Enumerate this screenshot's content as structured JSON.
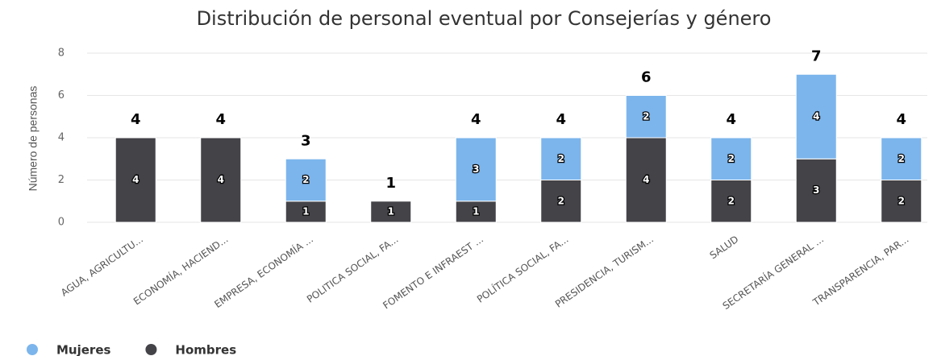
{
  "chart_data": {
    "type": "stacked_bar",
    "title": "Distribución de personal eventual por Consejerías y género",
    "y_label": "Número de personas",
    "categories": [
      "AGUA, AGRICULTU...",
      "ECONOMÍA, HACIEND...",
      "EMPRESA, ECONOMÍA ...",
      "POLITICA SOCIAL, FA...",
      "FOMENTO E INFRAEST ...",
      "POLÍTICA SOCIAL, FA...",
      "PRESIDENCIA, TURISM...",
      "SALUD",
      "SECRETARÍA GENERAL ...",
      "TRANSPARENCIA, PAR..."
    ],
    "series": [
      {
        "name": "Mujeres",
        "color": "#7cb5ec",
        "values": [
          0,
          0,
          2,
          0,
          3,
          2,
          2,
          2,
          4,
          2
        ]
      },
      {
        "name": "Hombres",
        "color": "#434348",
        "values": [
          4,
          4,
          1,
          1,
          1,
          2,
          4,
          2,
          3,
          2
        ]
      }
    ],
    "totals": [
      4,
      4,
      3,
      1,
      4,
      4,
      6,
      4,
      7,
      4
    ],
    "ylim": [
      0,
      8
    ],
    "yticks": [
      0,
      2,
      4,
      6,
      8
    ],
    "grid": true,
    "legend": "bottom-left"
  }
}
